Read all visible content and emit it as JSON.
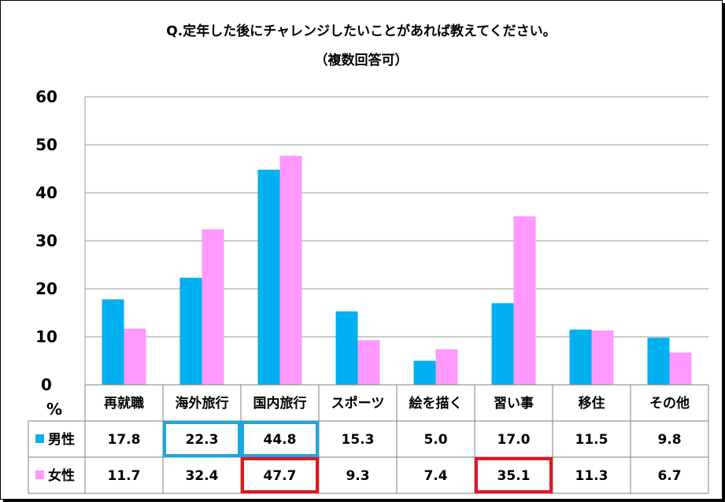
{
  "chart_data": {
    "type": "bar",
    "title": "Q.定年した後にチャレンジしたいことがあれば教えてください。",
    "subtitle": "（複数回答可）",
    "ylabel": "%",
    "ylim": [
      0,
      60
    ],
    "yticks": [
      0,
      10,
      20,
      30,
      40,
      50,
      60
    ],
    "grid": true,
    "categories": [
      "再就職",
      "海外旅行",
      "国内旅行",
      "スポーツ",
      "絵を描く",
      "習い事",
      "移住",
      "その他"
    ],
    "series": [
      {
        "name": "男性",
        "color": "#00b0f0",
        "values": [
          17.8,
          22.3,
          44.8,
          15.3,
          5.0,
          17.0,
          11.5,
          9.8
        ],
        "labels": [
          "17.8",
          "22.3",
          "44.8",
          "15.3",
          "5.0",
          "17.0",
          "11.5",
          "9.8"
        ]
      },
      {
        "name": "女性",
        "color": "#ff99ff",
        "values": [
          11.7,
          32.4,
          47.7,
          9.3,
          7.4,
          35.1,
          11.3,
          6.7
        ],
        "labels": [
          "11.7",
          "32.4",
          "47.7",
          "9.3",
          "7.4",
          "35.1",
          "11.3",
          "6.7"
        ]
      }
    ],
    "highlights": [
      {
        "series": 0,
        "category": 1,
        "color": "#1aa7e0"
      },
      {
        "series": 0,
        "category": 2,
        "color": "#1aa7e0"
      },
      {
        "series": 1,
        "category": 2,
        "color": "#e8141b"
      },
      {
        "series": 1,
        "category": 5,
        "color": "#e8141b"
      }
    ]
  }
}
